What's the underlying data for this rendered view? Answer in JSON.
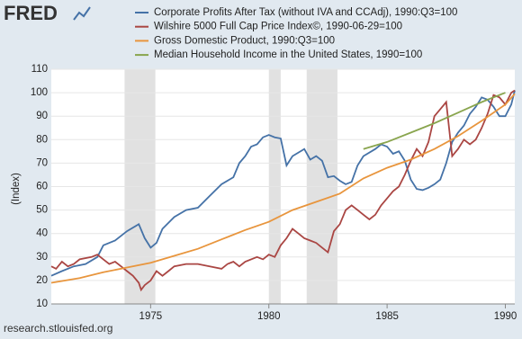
{
  "chart_data": {
    "type": "line",
    "logo": "FRED",
    "source": "research.stlouisfed.org",
    "y_label": "(Index)",
    "xlim": [
      1970.8,
      1990.4
    ],
    "xticks": [
      1975,
      1980,
      1985,
      1990
    ],
    "ylim": [
      10,
      110
    ],
    "yticks": [
      10,
      20,
      30,
      40,
      50,
      60,
      70,
      80,
      90,
      100,
      110
    ],
    "grid": true,
    "recessions": [
      [
        1973.9,
        1975.2
      ],
      [
        1980.0,
        1980.5
      ],
      [
        1981.6,
        1982.9
      ]
    ],
    "series": [
      {
        "name": "Corporate Profits After Tax (without IVA and CCAdj), 1990:Q3=100",
        "color": "#4572a7",
        "x": [
          1970.8,
          1971.25,
          1971.75,
          1972.25,
          1972.75,
          1973.0,
          1973.5,
          1974.0,
          1974.5,
          1974.75,
          1975.0,
          1975.25,
          1975.5,
          1976.0,
          1976.5,
          1977.0,
          1977.5,
          1978.0,
          1978.5,
          1978.75,
          1979.0,
          1979.25,
          1979.5,
          1979.75,
          1980.0,
          1980.25,
          1980.5,
          1980.75,
          1981.0,
          1981.5,
          1981.75,
          1982.0,
          1982.25,
          1982.5,
          1982.75,
          1983.0,
          1983.25,
          1983.5,
          1983.75,
          1984.0,
          1984.5,
          1984.75,
          1985.0,
          1985.25,
          1985.5,
          1985.75,
          1986.0,
          1986.25,
          1986.5,
          1986.75,
          1987.0,
          1987.25,
          1987.5,
          1987.75,
          1988.0,
          1988.25,
          1988.5,
          1988.75,
          1989.0,
          1989.25,
          1989.5,
          1989.75,
          1990.0,
          1990.25,
          1990.4
        ],
        "values": [
          22,
          24,
          26,
          27,
          30,
          35,
          37,
          41,
          44,
          38,
          34,
          36,
          42,
          47,
          50,
          51,
          56,
          61,
          64,
          70,
          73,
          77,
          78,
          81,
          82,
          81,
          80.5,
          69,
          73,
          76,
          71.5,
          73,
          71,
          64,
          64.5,
          62.5,
          61,
          62,
          69,
          73,
          76,
          78,
          77,
          74,
          75,
          71,
          63,
          59,
          58.5,
          59.5,
          61,
          63,
          70,
          79,
          83,
          86,
          91,
          94,
          98,
          97,
          94,
          90,
          90,
          95,
          101
        ]
      },
      {
        "name": "Wilshire 5000 Full Cap Price Index©, 1990-06-29=100",
        "color": "#aa4643",
        "x": [
          1970.8,
          1971.0,
          1971.25,
          1971.5,
          1971.75,
          1972.0,
          1972.5,
          1972.75,
          1973.0,
          1973.25,
          1973.5,
          1973.75,
          1974.0,
          1974.25,
          1974.5,
          1974.6,
          1974.75,
          1975.0,
          1975.25,
          1975.5,
          1975.75,
          1976.0,
          1976.5,
          1977.0,
          1977.5,
          1978.0,
          1978.25,
          1978.5,
          1978.75,
          1979.0,
          1979.5,
          1979.75,
          1980.0,
          1980.25,
          1980.5,
          1980.75,
          1981.0,
          1981.25,
          1981.5,
          1981.75,
          1982.0,
          1982.25,
          1982.5,
          1982.75,
          1983.0,
          1983.25,
          1983.5,
          1983.75,
          1984.0,
          1984.25,
          1984.5,
          1984.75,
          1985.0,
          1985.25,
          1985.5,
          1985.75,
          1986.0,
          1986.25,
          1986.5,
          1986.75,
          1987.0,
          1987.25,
          1987.5,
          1987.75,
          1988.0,
          1988.25,
          1988.5,
          1988.75,
          1989.0,
          1989.25,
          1989.5,
          1989.75,
          1990.0,
          1990.25,
          1990.4
        ],
        "values": [
          26,
          25,
          28,
          26,
          27,
          29,
          30,
          31,
          29,
          27,
          28,
          26,
          24,
          22,
          19,
          16,
          18,
          20,
          24,
          22,
          24,
          26,
          27,
          27,
          26,
          25,
          27,
          28,
          26,
          28,
          30,
          29,
          31,
          30,
          35,
          38,
          42,
          40,
          38,
          37,
          36,
          34,
          32,
          41,
          44,
          50,
          52,
          50,
          48,
          46,
          48,
          52,
          55,
          58,
          60,
          65,
          71,
          76,
          73,
          79,
          90,
          93,
          96,
          73,
          76,
          80,
          78,
          80,
          85,
          91,
          99,
          98,
          95,
          100,
          101
        ]
      },
      {
        "name": "Gross Domestic Product, 1990:Q3=100",
        "color": "#e8953d",
        "x": [
          1970.8,
          1972,
          1973,
          1974,
          1975,
          1976,
          1977,
          1978,
          1979,
          1980,
          1981,
          1982,
          1983,
          1984,
          1985,
          1986,
          1987,
          1988,
          1989,
          1990,
          1990.4
        ],
        "values": [
          19,
          21,
          23.5,
          25.5,
          27.5,
          30.5,
          33.5,
          37.5,
          41.5,
          45,
          50,
          53.5,
          57,
          63.5,
          68,
          71.5,
          76,
          81.5,
          88,
          95,
          99.5
        ]
      },
      {
        "name": "Median Household Income in the United States, 1990=100",
        "color": "#89a54e",
        "x": [
          1984,
          1985,
          1986,
          1987,
          1988,
          1989,
          1990
        ],
        "values": [
          76,
          79,
          83,
          87,
          91.5,
          96,
          100
        ]
      }
    ]
  }
}
